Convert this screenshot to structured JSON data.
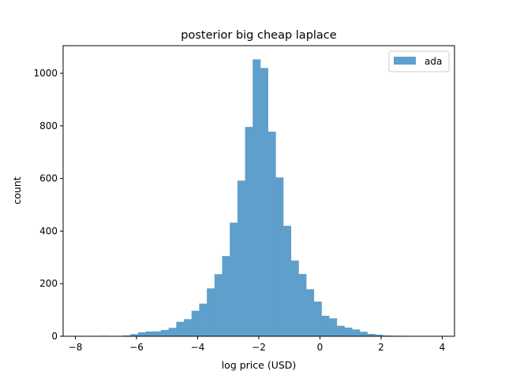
{
  "chart_data": {
    "type": "bar",
    "subtype": "histogram",
    "title": "posterior big cheap laplace",
    "xlabel": "log price (USD)",
    "ylabel": "count",
    "xlim": [
      -8.4,
      4.4
    ],
    "ylim": [
      0,
      1105
    ],
    "xticks": [
      -8,
      -6,
      -4,
      -2,
      0,
      2,
      4
    ],
    "yticks": [
      0,
      200,
      400,
      600,
      800,
      1000
    ],
    "grid": false,
    "legend": {
      "placement": "top-right"
    },
    "series": [
      {
        "name": "ada",
        "color": "#5f9fcc",
        "bin_edges": [
          -7.45,
          -7.2,
          -6.95,
          -6.7,
          -6.45,
          -6.2,
          -5.95,
          -5.7,
          -5.45,
          -5.2,
          -4.95,
          -4.7,
          -4.45,
          -4.2,
          -3.95,
          -3.7,
          -3.45,
          -3.2,
          -2.95,
          -2.7,
          -2.45,
          -2.2,
          -1.95,
          -1.7,
          -1.45,
          -1.2,
          -0.95,
          -0.7,
          -0.45,
          -0.2,
          0.05,
          0.3,
          0.55,
          0.8,
          1.05,
          1.3,
          1.55,
          1.8,
          2.05,
          2.3,
          2.55,
          2.8,
          3.05,
          3.3
        ],
        "counts": [
          1,
          2,
          0,
          1,
          3,
          8,
          15,
          18,
          19,
          24,
          32,
          55,
          65,
          97,
          124,
          182,
          236,
          305,
          432,
          592,
          796,
          1053,
          1020,
          778,
          604,
          420,
          288,
          237,
          179,
          132,
          78,
          68,
          40,
          33,
          26,
          17,
          9,
          6,
          3,
          2,
          2,
          1,
          1
        ]
      }
    ]
  }
}
